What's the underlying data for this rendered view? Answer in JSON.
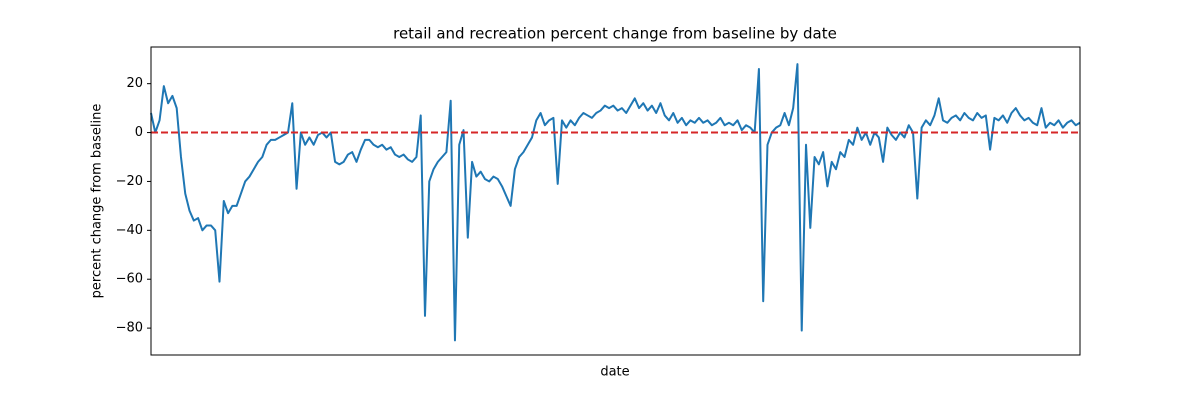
{
  "chart_data": {
    "type": "line",
    "title": "retail and recreation percent change from baseline by date",
    "x_label": "date",
    "y_label": "percent change from baseline",
    "series": [
      {
        "color": "#1f77b4",
        "values": [
          8,
          0,
          5,
          19,
          12,
          15,
          10,
          -10,
          -25,
          -32,
          -36,
          -35,
          -40,
          -38,
          -38,
          -40,
          -61,
          -28,
          -33,
          -30,
          -30,
          -25,
          -20,
          -18,
          -15,
          -12,
          -10,
          -5,
          -3,
          -3,
          -2,
          -1,
          0,
          12,
          -23,
          0,
          -5,
          -2,
          -5,
          -1,
          0,
          -2,
          0,
          -12,
          -13,
          -12,
          -9,
          -8,
          -12,
          -7,
          -3,
          -3,
          -5,
          -6,
          -5,
          -7,
          -6,
          -9,
          -10,
          -9,
          -11,
          -12,
          -10,
          7,
          -75,
          -20,
          -15,
          -12,
          -10,
          -8,
          13,
          -85,
          -5,
          1,
          -43,
          -12,
          -18,
          -16,
          -19,
          -20,
          -18,
          -19,
          -22,
          -26,
          -30,
          -15,
          -10,
          -8,
          -5,
          -2,
          5,
          8,
          3,
          5,
          6,
          -21,
          5,
          2,
          5,
          3,
          6,
          8,
          7,
          6,
          8,
          9,
          11,
          10,
          11,
          9,
          10,
          8,
          11,
          14,
          10,
          12,
          9,
          11,
          8,
          12,
          7,
          5,
          8,
          4,
          6,
          3,
          5,
          4,
          6,
          4,
          5,
          3,
          4,
          6,
          3,
          4,
          3,
          5,
          1,
          3,
          2,
          0,
          26,
          -69,
          -5,
          0,
          2,
          3,
          8,
          3,
          10,
          28,
          -81,
          -5,
          -39,
          -10,
          -13,
          -8,
          -22,
          -12,
          -15,
          -8,
          -10,
          -3,
          -5,
          2,
          -3,
          0,
          -5,
          0,
          -2,
          -12,
          2,
          -1,
          -3,
          0,
          -2,
          3,
          0,
          -27,
          2,
          5,
          3,
          7,
          14,
          5,
          4,
          6,
          7,
          5,
          8,
          6,
          5,
          8,
          6,
          7,
          -7,
          6,
          5,
          7,
          4,
          8,
          10,
          7,
          5,
          6,
          4,
          3,
          10,
          2,
          4,
          3,
          5,
          2,
          4,
          5,
          3,
          4
        ]
      }
    ],
    "ylim": [
      -91,
      35
    ],
    "yticks": [
      {
        "value": -80,
        "label": "−80"
      },
      {
        "value": -60,
        "label": "−60"
      },
      {
        "value": -40,
        "label": "−40"
      },
      {
        "value": -20,
        "label": "−20"
      },
      0,
      20
    ],
    "reference_line": {
      "value": 0,
      "color": "#d62728",
      "style": "dashed"
    }
  }
}
